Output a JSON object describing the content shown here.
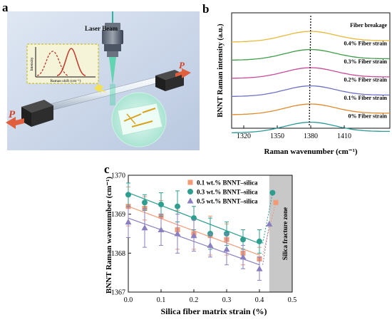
{
  "panel_a": {
    "label": "a",
    "laser_label": "Laser Beam",
    "force_label": "P",
    "inset": {
      "ylabel": "Intensity",
      "xlabel": "Raman shift (cm⁻¹)"
    }
  },
  "panel_b": {
    "label": "b",
    "ylabel": "BNNT Raman intensity (a.u.)",
    "xlabel": "Raman wavenumber (cm⁻¹)",
    "xticks": [
      "1320",
      "1350",
      "1380",
      "1410"
    ],
    "curves": [
      {
        "label": "Fiber breakage",
        "color": "#e8b93a"
      },
      {
        "label": "0.4% Fiber strain",
        "color": "#3e9d48"
      },
      {
        "label": "0.3% Fiber strain",
        "color": "#c94a9a"
      },
      {
        "label": "0.2% Fiber strain",
        "color": "#6e72c4"
      },
      {
        "label": "0.1% Fiber strain",
        "color": "#e08a2a"
      },
      {
        "label": "0% Fiber strain",
        "color": "#2a9a9a"
      }
    ]
  },
  "chart_data": {
    "type": "scatter",
    "label": "c",
    "xlabel": "Silica fiber matrix strain (%)",
    "ylabel": "BNNT Raman wavenumber (cm⁻¹)",
    "xlim": [
      0.0,
      0.5
    ],
    "ylim": [
      1367,
      1370
    ],
    "xticks": [
      "0.0",
      "0.1",
      "0.2",
      "0.3",
      "0.4",
      "0.5"
    ],
    "yticks": [
      "1367",
      "1368",
      "1369",
      "1370"
    ],
    "annotation": "Silica fracture zone",
    "fracture_zone": [
      0.43,
      0.5
    ],
    "legend_position": "top-right",
    "series": [
      {
        "name": "0.1 wt.% BNNT–silica",
        "color": "#f29a76",
        "marker": "square",
        "x": [
          0.0,
          0.05,
          0.1,
          0.15,
          0.2,
          0.25,
          0.3,
          0.35,
          0.4
        ],
        "y": [
          1369.2,
          1369.15,
          1368.95,
          1368.6,
          1368.5,
          1368.45,
          1368.35,
          1368.0,
          1367.85
        ],
        "err": [
          0.5,
          0.3,
          0.4,
          0.5,
          0.4,
          0.5,
          0.4,
          0.3,
          0.3
        ],
        "break_x": 0.45,
        "break_y": 1369.3,
        "fit": [
          1369.2,
          1367.95
        ]
      },
      {
        "name": "0.3 wt.% BNNT–silica",
        "color": "#2f9e8f",
        "marker": "circle",
        "x": [
          0.0,
          0.05,
          0.1,
          0.15,
          0.2,
          0.25,
          0.3,
          0.35,
          0.4
        ],
        "y": [
          1369.5,
          1369.3,
          1369.25,
          1369.2,
          1368.9,
          1368.5,
          1368.5,
          1368.35,
          1368.3
        ],
        "err": [
          0.3,
          0.2,
          0.3,
          0.4,
          0.3,
          0.4,
          0.3,
          0.25,
          0.3
        ],
        "break_x": 0.44,
        "break_y": 1369.55,
        "fit": [
          1369.55,
          1368.25
        ]
      },
      {
        "name": "0.5 wt.% BNNT–silica",
        "color": "#8a7fc0",
        "marker": "triangle",
        "x": [
          0.0,
          0.05,
          0.1,
          0.15,
          0.2,
          0.25,
          0.3,
          0.35,
          0.4
        ],
        "y": [
          1368.8,
          1368.65,
          1368.6,
          1368.5,
          1368.45,
          1368.2,
          1368.1,
          1367.9,
          1367.6
        ],
        "err": [
          0.4,
          0.5,
          0.4,
          0.5,
          0.4,
          0.3,
          0.4,
          0.3,
          0.3
        ],
        "break_x": 0.43,
        "break_y": 1368.75,
        "fit": [
          1368.9,
          1367.7
        ]
      }
    ]
  }
}
